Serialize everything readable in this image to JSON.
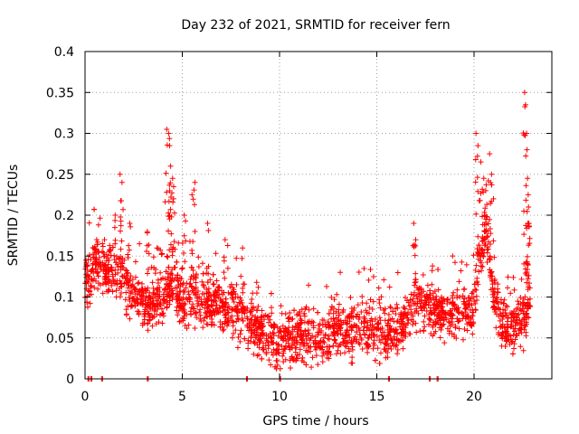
{
  "chart_data": {
    "type": "scatter",
    "title": "Day 232 of 2021, SRMTID for receiver fern",
    "xlabel": "GPS time / hours",
    "ylabel": "SRMTID / TECUs",
    "xlim": [
      0,
      24
    ],
    "ylim": [
      0,
      0.4
    ],
    "xticks": [
      0,
      5,
      10,
      15,
      20
    ],
    "xtick_labels": [
      "0",
      "5",
      "10",
      "15",
      "20"
    ],
    "yticks": [
      0,
      0.05,
      0.1,
      0.15,
      0.2,
      0.25,
      0.3,
      0.35,
      0.4
    ],
    "ytick_labels": [
      "0",
      "0.05",
      "0.1",
      "0.15",
      "0.2",
      "0.25",
      "0.3",
      "0.35",
      "0.4"
    ],
    "grid": true,
    "marker": "+",
    "color": "#ff0000",
    "trend": [
      [
        0.0,
        0.11
      ],
      [
        0.5,
        0.14
      ],
      [
        1.0,
        0.13
      ],
      [
        1.5,
        0.13
      ],
      [
        2.0,
        0.12
      ],
      [
        2.5,
        0.1
      ],
      [
        3.0,
        0.09
      ],
      [
        3.5,
        0.09
      ],
      [
        4.0,
        0.1
      ],
      [
        4.5,
        0.12
      ],
      [
        5.0,
        0.09
      ],
      [
        5.5,
        0.1
      ],
      [
        6.0,
        0.09
      ],
      [
        6.5,
        0.09
      ],
      [
        7.0,
        0.09
      ],
      [
        7.5,
        0.09
      ],
      [
        8.0,
        0.08
      ],
      [
        8.5,
        0.07
      ],
      [
        9.0,
        0.06
      ],
      [
        9.5,
        0.05
      ],
      [
        10.0,
        0.05
      ],
      [
        10.5,
        0.05
      ],
      [
        11.0,
        0.055
      ],
      [
        11.5,
        0.05
      ],
      [
        12.0,
        0.05
      ],
      [
        12.5,
        0.05
      ],
      [
        13.0,
        0.06
      ],
      [
        13.5,
        0.06
      ],
      [
        14.0,
        0.06
      ],
      [
        14.5,
        0.06
      ],
      [
        15.0,
        0.06
      ],
      [
        15.5,
        0.06
      ],
      [
        16.0,
        0.06
      ],
      [
        16.5,
        0.07
      ],
      [
        17.0,
        0.09
      ],
      [
        17.5,
        0.09
      ],
      [
        18.0,
        0.08
      ],
      [
        18.5,
        0.08
      ],
      [
        19.0,
        0.08
      ],
      [
        19.5,
        0.08
      ],
      [
        20.0,
        0.09
      ],
      [
        20.3,
        0.15
      ],
      [
        20.6,
        0.18
      ],
      [
        21.0,
        0.1
      ],
      [
        21.5,
        0.07
      ],
      [
        22.0,
        0.06
      ],
      [
        22.5,
        0.07
      ],
      [
        22.9,
        0.08
      ]
    ],
    "scatter_spread": 0.03,
    "coverage_hours": [
      0.0,
      22.9
    ],
    "peaks": [
      {
        "x": 0.05,
        "y": 0.145
      },
      {
        "x": 0.6,
        "y": 0.17
      },
      {
        "x": 1.0,
        "y": 0.17
      },
      {
        "x": 1.55,
        "y": 0.2
      },
      {
        "x": 1.8,
        "y": 0.25
      },
      {
        "x": 1.9,
        "y": 0.24
      },
      {
        "x": 2.3,
        "y": 0.19
      },
      {
        "x": 3.2,
        "y": 0.18
      },
      {
        "x": 3.7,
        "y": 0.16
      },
      {
        "x": 4.2,
        "y": 0.305
      },
      {
        "x": 4.3,
        "y": 0.3
      },
      {
        "x": 4.35,
        "y": 0.285
      },
      {
        "x": 4.4,
        "y": 0.26
      },
      {
        "x": 4.5,
        "y": 0.245
      },
      {
        "x": 4.55,
        "y": 0.22
      },
      {
        "x": 5.1,
        "y": 0.2
      },
      {
        "x": 5.5,
        "y": 0.225
      },
      {
        "x": 5.65,
        "y": 0.24
      },
      {
        "x": 6.3,
        "y": 0.19
      },
      {
        "x": 7.2,
        "y": 0.17
      },
      {
        "x": 8.1,
        "y": 0.16
      },
      {
        "x": 16.9,
        "y": 0.19
      },
      {
        "x": 17.0,
        "y": 0.17
      },
      {
        "x": 20.1,
        "y": 0.3
      },
      {
        "x": 20.2,
        "y": 0.285
      },
      {
        "x": 20.35,
        "y": 0.265
      },
      {
        "x": 20.5,
        "y": 0.245
      },
      {
        "x": 20.6,
        "y": 0.23
      },
      {
        "x": 20.8,
        "y": 0.275
      },
      {
        "x": 20.9,
        "y": 0.25
      },
      {
        "x": 21.0,
        "y": 0.22
      },
      {
        "x": 22.6,
        "y": 0.35
      },
      {
        "x": 22.65,
        "y": 0.335
      },
      {
        "x": 22.7,
        "y": 0.3
      },
      {
        "x": 22.72,
        "y": 0.28
      },
      {
        "x": 22.75,
        "y": 0.245
      },
      {
        "x": 22.8,
        "y": 0.21
      },
      {
        "x": 22.82,
        "y": 0.19
      }
    ],
    "zero_points": [
      0.15,
      0.3,
      0.85,
      3.2,
      8.3,
      10.0,
      15.6,
      17.7,
      18.1
    ]
  }
}
